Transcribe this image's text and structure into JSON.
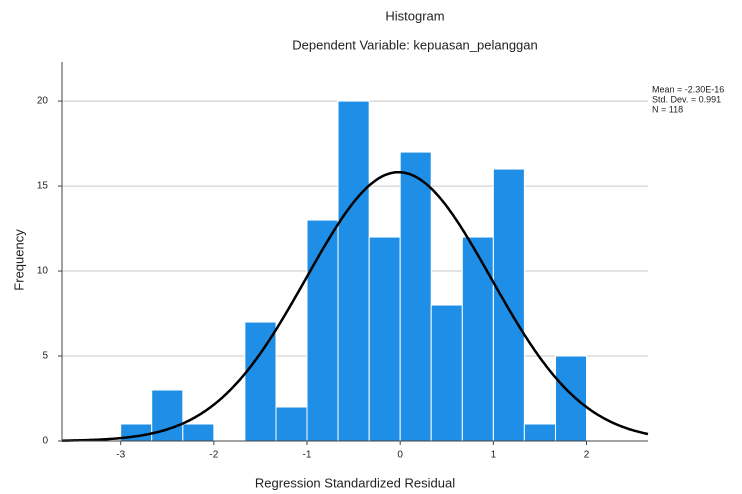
{
  "chart_data": {
    "type": "histogram",
    "title": "Histogram",
    "subtitle": "Dependent Variable: kepuasan_pelanggan",
    "x_label": "Regression Standardized Residual",
    "y_label": "Frequency",
    "stats": [
      "Mean = -2.30E-16",
      "Std. Dev. = 0.991",
      "N = 118"
    ],
    "bins": [
      -3,
      -2.667,
      -2.333,
      -2,
      -1.667,
      -1.333,
      -1,
      -0.667,
      -0.333,
      0,
      0.333,
      0.667,
      1,
      1.333,
      1.667,
      2
    ],
    "counts": [
      1,
      3,
      1,
      0,
      7,
      2,
      13,
      20,
      12,
      17,
      8,
      12,
      16,
      1,
      5
    ],
    "color": "#1e8ee6",
    "curve_color": "#000000",
    "xlim": [
      -3.63,
      2.66
    ],
    "ylim": [
      0,
      22.3
    ],
    "xticks": [
      -3,
      -2,
      -1,
      0,
      1,
      2
    ],
    "yticks": [
      0,
      5,
      10,
      15,
      20
    ],
    "grid": true
  }
}
